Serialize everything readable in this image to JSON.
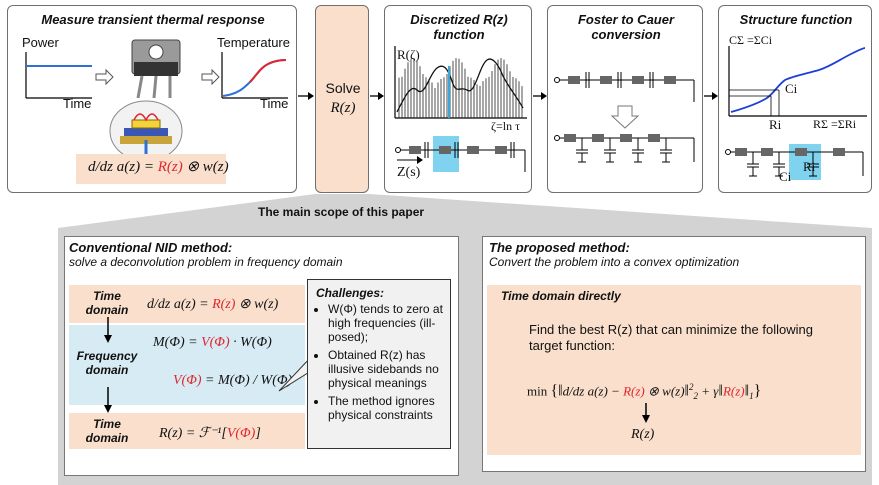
{
  "panels": {
    "measure": {
      "title": "Measure transient thermal response",
      "power_label": "Power",
      "time_label_1": "Time",
      "temperature_label": "Temperature",
      "time_label_2": "Time",
      "equation_lhs": "d/dz a(z) = ",
      "equation_red": "R(z)",
      "equation_rhs": " ⊗ w(z)"
    },
    "solve": {
      "title": "Solve",
      "subtitle": "R(z)"
    },
    "discretized": {
      "title_line1": "Discretized R(z)",
      "title_line2": "function",
      "y_label": "R(ζ)",
      "x_label": "ζ=ln τ",
      "z_label": "Z(s)"
    },
    "foster": {
      "title_line1": "Foster to Cauer",
      "title_line2": "conversion"
    },
    "structure": {
      "title": "Structure function",
      "y_label": "CΣ =ΣCi",
      "ci_label": "Ci",
      "ri_label": "Ri",
      "x_label": "RΣ =ΣRi",
      "ri_box_label": "Ri",
      "ci_box_label": "Ci"
    }
  },
  "scope_label": "The main scope of this paper",
  "conventional": {
    "title": "Conventional NID method:",
    "subtitle": "solve a deconvolution problem in frequency domain",
    "time_domain_1": "Time domain",
    "frequency_domain": "Frequency domain",
    "time_domain_2": "Time domain",
    "eq1_lhs": "d/dz a(z) = ",
    "eq1_red": "R(z)",
    "eq1_rhs": " ⊗ w(z)",
    "eq2_lhs": "M(Φ) = ",
    "eq2_red": "V(Φ)",
    "eq2_rhs": " · W(Φ)",
    "eq3_red": "V(Φ)",
    "eq3_rhs": " = M(Φ) / W(Φ)",
    "eq4_lhs": "R(z) = ℱ⁻¹[",
    "eq4_red": "V(Φ)",
    "eq4_rhs": "]",
    "challenges_title": "Challenges:",
    "challenges": [
      "W(Φ) tends to zero at high frequencies (ill-posed);",
      "Obtained R(z) has illusive sidebands no physical meanings",
      "The method ignores physical constraints"
    ]
  },
  "proposed": {
    "title": "The proposed method:",
    "subtitle": "Convert the problem into a convex optimization",
    "band_title": "Time domain directly",
    "description": "Find the best R(z) that can minimize the following target function:",
    "formula_min": "min",
    "formula_a": "d/dz a(z) − ",
    "formula_red1": "R(z)",
    "formula_b": " ⊗ w(z)",
    "formula_c": " + γ",
    "formula_red2": "R(z)",
    "result": "R(z)"
  },
  "colors": {
    "peach": "#f9dfcc",
    "light_blue": "#d7ebf4",
    "highlight_blue": "#7fd3ef",
    "curve_blue": "#1c3fd6",
    "accent_red": "#e0262e",
    "gray_band": "#d3d3d3"
  }
}
